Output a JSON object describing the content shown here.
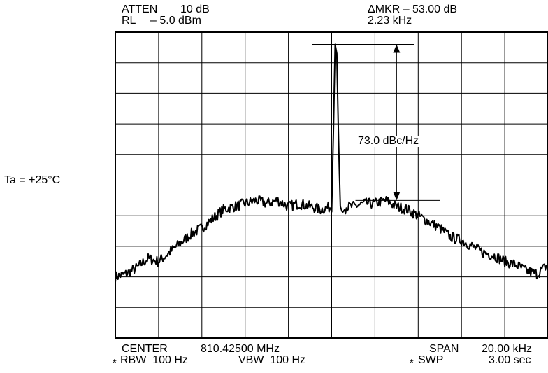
{
  "header": {
    "atten_label": "ATTEN",
    "atten_value": "10 dB",
    "rl_label": "RL",
    "rl_value": "– 5.0 dBm",
    "delta_marker": "ΔMKR – 53.00 dB",
    "delta_freq": "2.23 kHz"
  },
  "footer": {
    "center_label": "CENTER",
    "center_value": "810.42500 MHz",
    "rbw": "RBW  100 Hz",
    "vbw": "VBW  100 Hz",
    "span_label": "SPAN",
    "span_value": "20.00 kHz",
    "swp_label": "SWP",
    "swp_value": "3.00 sec",
    "star": "*"
  },
  "condition": "Ta = +25°C",
  "chart_data": {
    "type": "line",
    "grid": true,
    "grid_divisions": {
      "x": 10,
      "y": 10
    },
    "center_frequency": "810.42500 MHz",
    "span": "20.00 kHz",
    "reference_level": "– 5.0 dBm",
    "annotation": "73.0 dBc/Hz",
    "series": [
      {
        "x_div": [
          0,
          0.25,
          0.5,
          0.75,
          1.0,
          1.25,
          1.5,
          1.75,
          2.0,
          2.25,
          2.5,
          2.75,
          3.0,
          3.25,
          3.5,
          3.75,
          4.0,
          4.25,
          4.5,
          4.75,
          5.0,
          5.03,
          5.08,
          5.12,
          5.15,
          5.2,
          5.25,
          5.3,
          5.35,
          5.5,
          5.75,
          6.0,
          6.25,
          6.5,
          6.75,
          7.0,
          7.25,
          7.5,
          7.75,
          8.0,
          8.25,
          8.5,
          8.75,
          9.0,
          9.25,
          9.5,
          9.75,
          10.0
        ],
        "y_div": [
          2.0,
          2.1,
          2.3,
          2.6,
          2.5,
          2.8,
          3.1,
          3.4,
          3.6,
          3.9,
          4.2,
          4.3,
          4.4,
          4.5,
          4.4,
          4.5,
          4.3,
          4.4,
          4.3,
          4.2,
          4.3,
          6.0,
          9.6,
          9.3,
          7.0,
          4.3,
          4.1,
          4.2,
          4.3,
          4.3,
          4.4,
          4.4,
          4.5,
          4.3,
          4.2,
          4.0,
          3.8,
          3.6,
          3.3,
          3.2,
          3.0,
          2.8,
          2.7,
          2.5,
          2.4,
          2.2,
          2.1,
          2.4
        ]
      }
    ]
  }
}
